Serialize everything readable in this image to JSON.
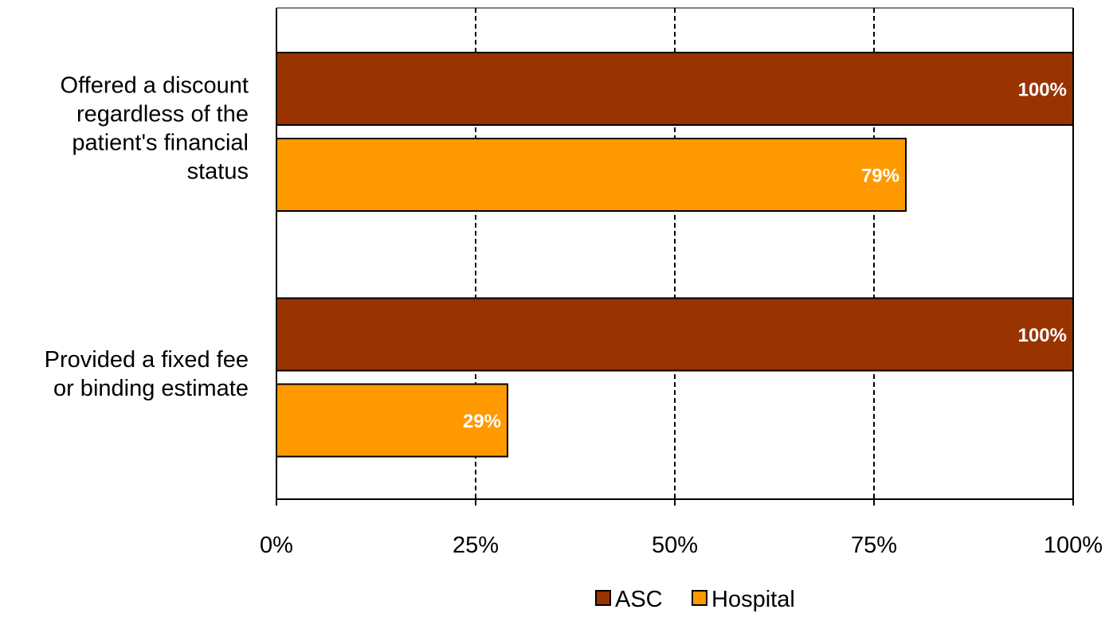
{
  "chart_data": {
    "type": "bar",
    "orientation": "horizontal",
    "categories": [
      [
        "Offered a discount",
        "regardless of the",
        "patient's financial",
        "status"
      ],
      [
        "Provided a fixed fee",
        "or binding estimate"
      ]
    ],
    "series": [
      {
        "name": "ASC",
        "values": [
          100,
          100
        ],
        "labels": [
          "100%",
          "100%"
        ],
        "color": "#993300"
      },
      {
        "name": "Hospital",
        "values": [
          79,
          29
        ],
        "labels": [
          "79%",
          "29%"
        ],
        "color": "#FF9900"
      }
    ],
    "xlim": [
      0,
      100
    ],
    "xticks": [
      0,
      25,
      50,
      75,
      100
    ],
    "xtick_labels": [
      "0%",
      "25%",
      "50%",
      "75%",
      "100%"
    ],
    "grid": "vertical dashed",
    "legend_position": "bottom"
  }
}
